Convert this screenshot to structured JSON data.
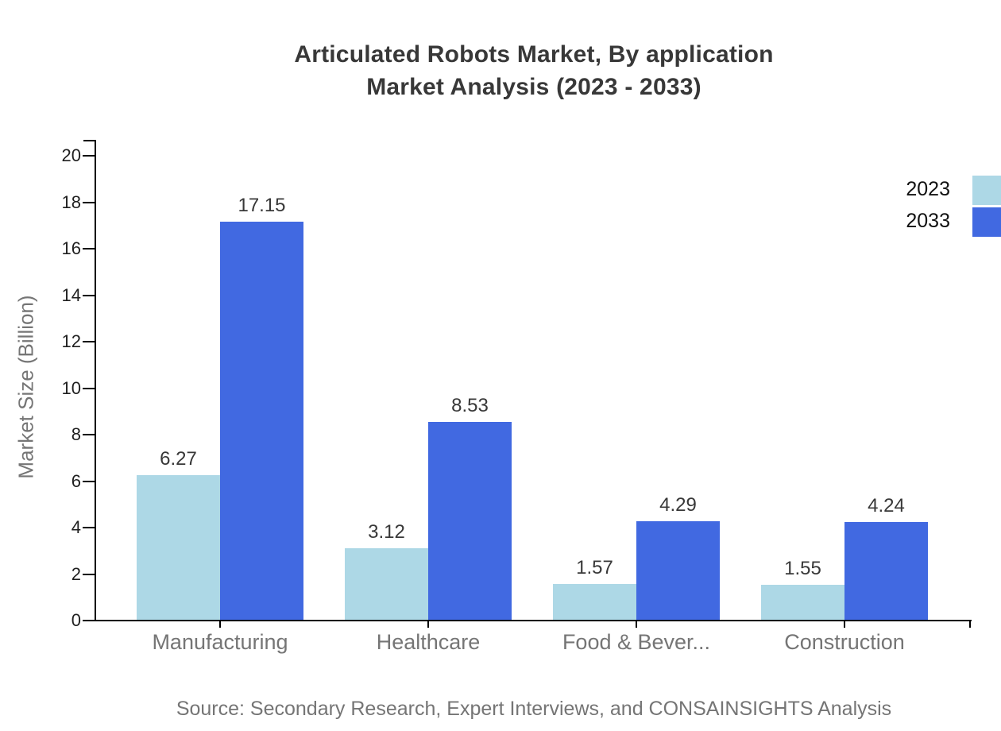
{
  "title": {
    "line1": "Articulated Robots Market, By application",
    "line2": "Market Analysis (2023 - 2033)"
  },
  "source": "Source: Secondary Research, Expert Interviews, and CONSAINSIGHTS Analysis",
  "legend": {
    "position": "top-right",
    "items": [
      {
        "label": "2023",
        "color": "#ADD8E6"
      },
      {
        "label": "2033",
        "color": "#4169E1"
      }
    ]
  },
  "colors": {
    "series_2023": "#ADD8E6",
    "series_2033": "#4169E1",
    "axis": "#000000",
    "title_text": "#383838",
    "muted_text": "#757575"
  },
  "chart_data": {
    "type": "bar",
    "title": "Articulated Robots Market, By application — Market Analysis (2023 - 2033)",
    "xlabel": "",
    "ylabel": "Market Size (Billion)",
    "categories": [
      "Manufacturing",
      "Healthcare",
      "Food & Bever...",
      "Construction"
    ],
    "series": [
      {
        "name": "2023",
        "color": "#ADD8E6",
        "values": [
          6.27,
          3.12,
          1.57,
          1.55
        ]
      },
      {
        "name": "2033",
        "color": "#4169E1",
        "values": [
          17.15,
          8.53,
          4.29,
          4.24
        ]
      }
    ],
    "ylim": [
      0,
      20
    ],
    "y_ticks": [
      0,
      2,
      4,
      6,
      8,
      10,
      12,
      14,
      16,
      18,
      20
    ],
    "grid": false,
    "value_labels": true,
    "legend_position": "top-right"
  }
}
